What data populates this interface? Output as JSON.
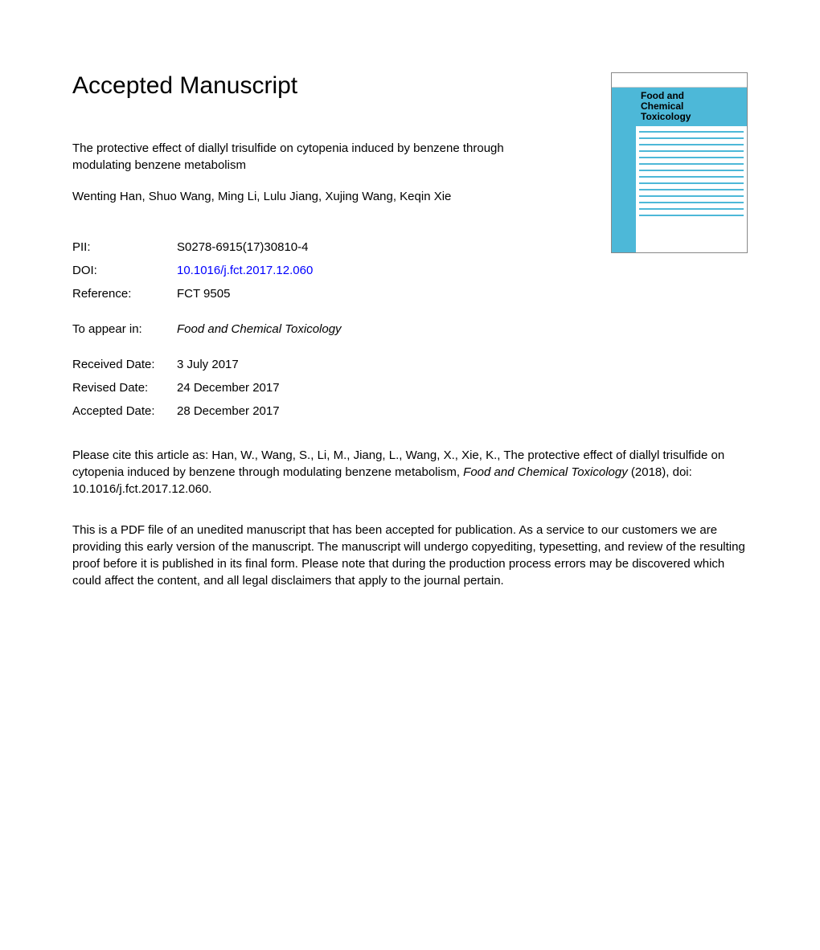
{
  "heading": "Accepted Manuscript",
  "article_title": "The protective effect of diallyl trisulfide on cytopenia induced by benzene through modulating benzene metabolism",
  "authors": "Wenting Han, Shuo Wang, Ming Li, Lulu Jiang, Xujing Wang, Keqin Xie",
  "meta": {
    "pii_label": "PII:",
    "pii_value": "S0278-6915(17)30810-4",
    "doi_label": "DOI:",
    "doi_value": "10.1016/j.fct.2017.12.060",
    "reference_label": "Reference:",
    "reference_value": "FCT 9505",
    "toappear_label": "To appear in:",
    "toappear_value": "Food and Chemical Toxicology",
    "received_label": "Received Date:",
    "received_value": "3 July 2017",
    "revised_label": "Revised Date:",
    "revised_value": "24 December 2017",
    "accepted_label": "Accepted Date:",
    "accepted_value": "28 December 2017"
  },
  "citation_prefix": "Please cite this article as: Han, W., Wang, S., Li, M., Jiang, L., Wang, X., Xie, K., The protective effect of diallyl trisulfide on cytopenia induced by benzene through modulating benzene metabolism, ",
  "citation_journal": "Food and Chemical Toxicology",
  "citation_suffix": " (2018), doi: 10.1016/j.fct.2017.12.060.",
  "disclaimer": "This is a PDF file of an unedited manuscript that has been accepted for publication. As a service to our customers we are providing this early version of the manuscript. The manuscript will undergo copyediting, typesetting, and review of the resulting proof before it is published in its final form. Please note that during the production process errors may be discovered which could affect the content, and all legal disclaimers that apply to the journal pertain.",
  "journal_cover": {
    "title_line1": "Food and",
    "title_line2": "Chemical",
    "title_line3": "Toxicology",
    "accent_color": "#4db8d8",
    "line_count": 14
  }
}
